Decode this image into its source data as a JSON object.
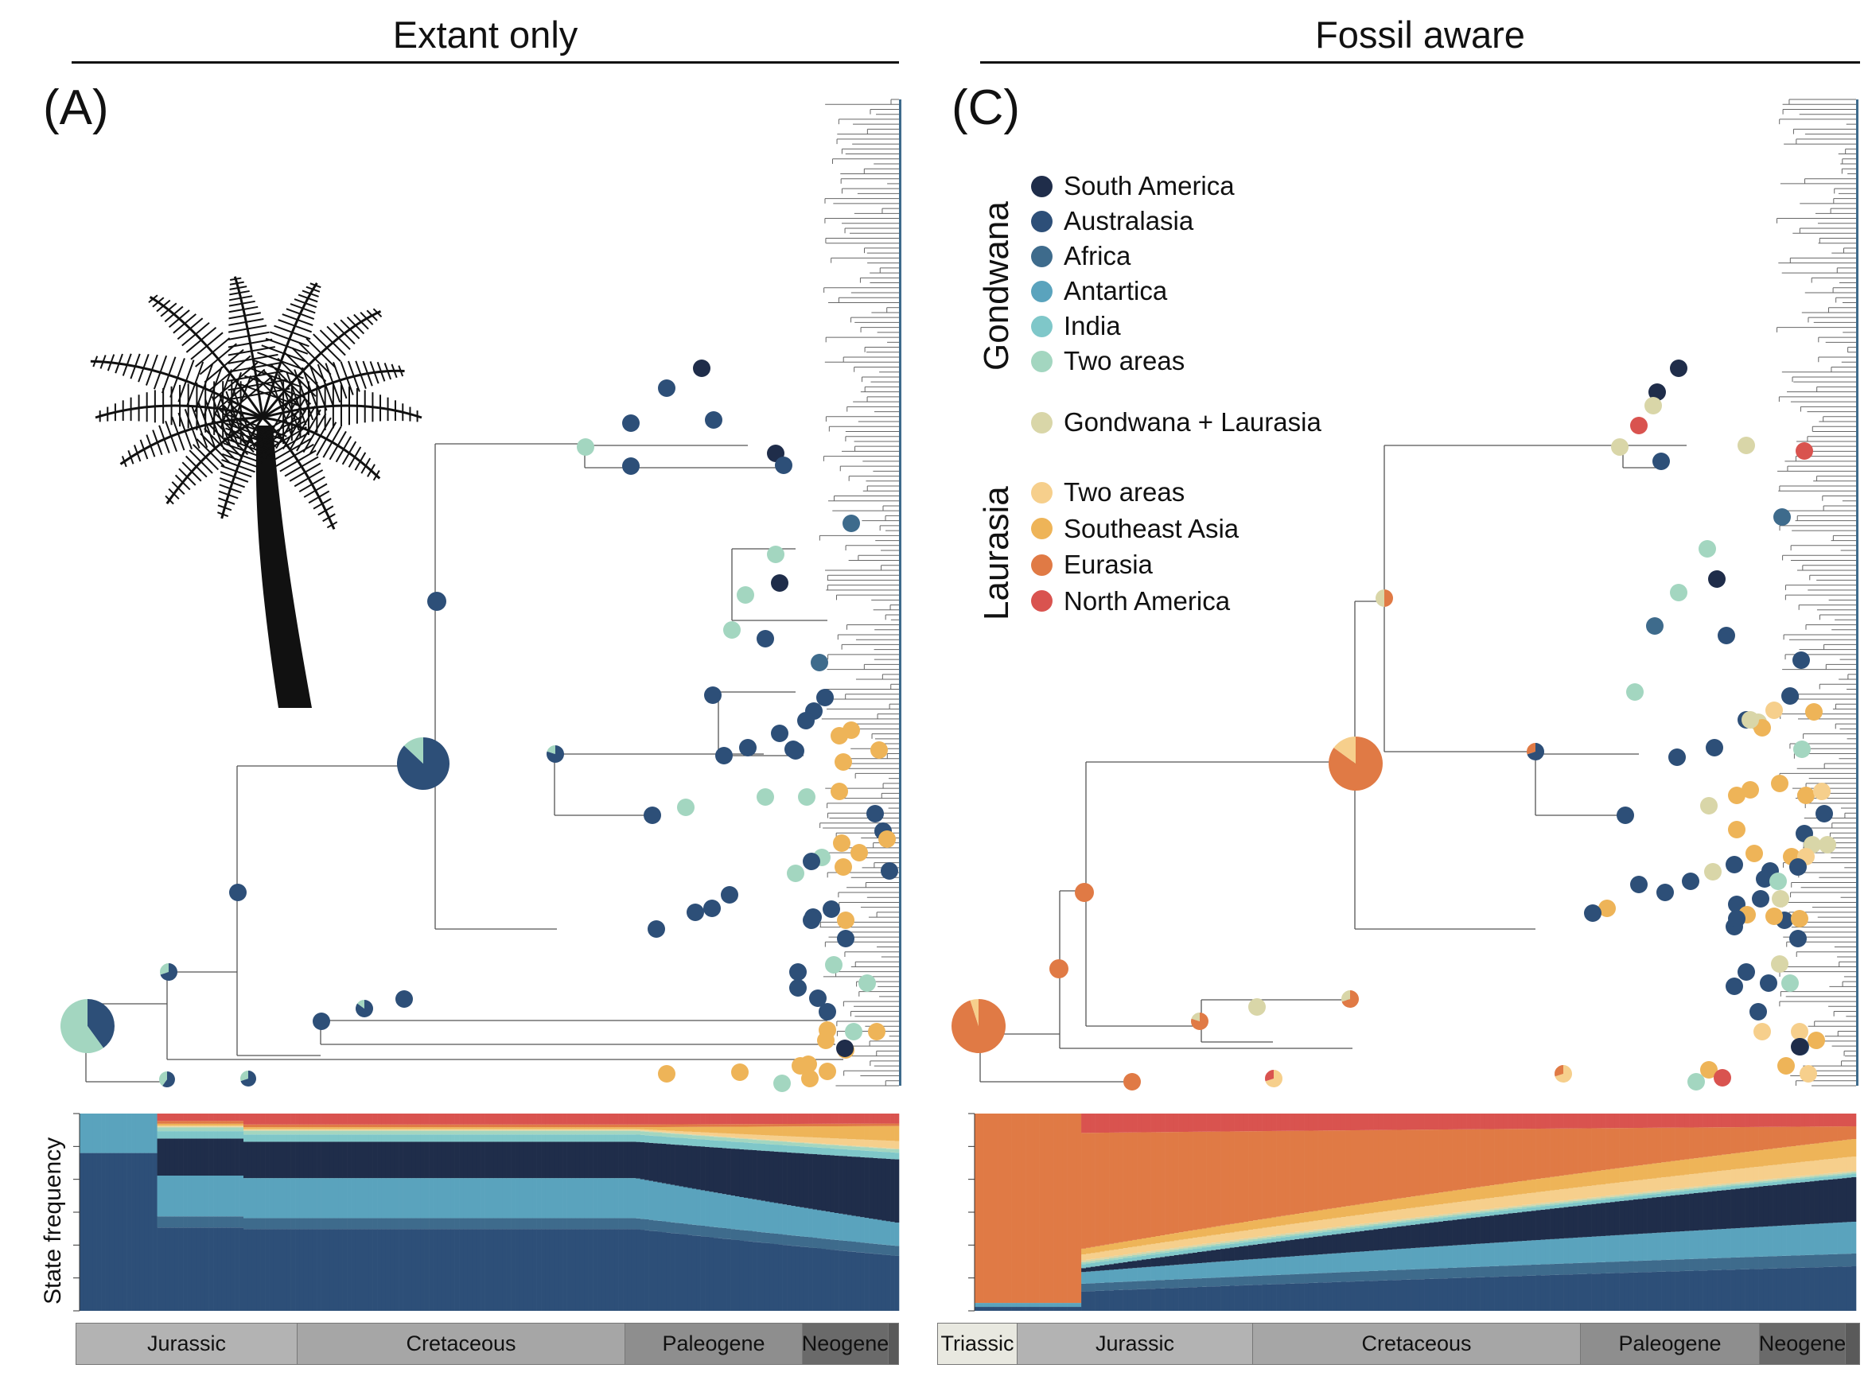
{
  "panels": {
    "left": {
      "title": "Extant only",
      "letter": "(A)"
    },
    "right": {
      "title": "Fossil aware",
      "letter": "(C)"
    }
  },
  "legend": {
    "gondwana_label": "Gondwana",
    "laurasia_label": "Laurasia",
    "gondwana": [
      {
        "label": "South America",
        "color": "#1f2d4a"
      },
      {
        "label": "Australasia",
        "color": "#2d4f78"
      },
      {
        "label": "Africa",
        "color": "#3e6b8c"
      },
      {
        "label": "Antartica",
        "color": "#5aa3bd"
      },
      {
        "label": "India",
        "color": "#7fc7c9"
      },
      {
        "label": "Two areas",
        "color": "#a3d6c0"
      }
    ],
    "mixed": {
      "label": "Gondwana + Laurasia",
      "color": "#d9d6a8"
    },
    "laurasia": [
      {
        "label": "Two areas",
        "color": "#f6cf8c"
      },
      {
        "label": "Southeast Asia",
        "color": "#eeb458"
      },
      {
        "label": "Eurasia",
        "color": "#e07a45"
      },
      {
        "label": "North America",
        "color": "#d9534f"
      }
    ]
  },
  "frequency_ylabel": "State frequency",
  "timescale": {
    "left": [
      {
        "label": "Jurassic",
        "color": "#b3b3b3"
      },
      {
        "label": "Cretaceous",
        "color": "#a6a6a6"
      },
      {
        "label": "Paleogene",
        "color": "#8e8e8e"
      },
      {
        "label": "Neogene",
        "color": "#6a6a6a"
      }
    ],
    "right": [
      {
        "label": "Triassic",
        "color": "#e8e8e0"
      },
      {
        "label": "Jurassic",
        "color": "#b3b3b3"
      },
      {
        "label": "Cretaceous",
        "color": "#a6a6a6"
      },
      {
        "label": "Paleogene",
        "color": "#8e8e8e"
      },
      {
        "label": "Neogene",
        "color": "#6a6a6a"
      }
    ]
  },
  "icons": {
    "palm": "tree-fern-silhouette"
  }
}
